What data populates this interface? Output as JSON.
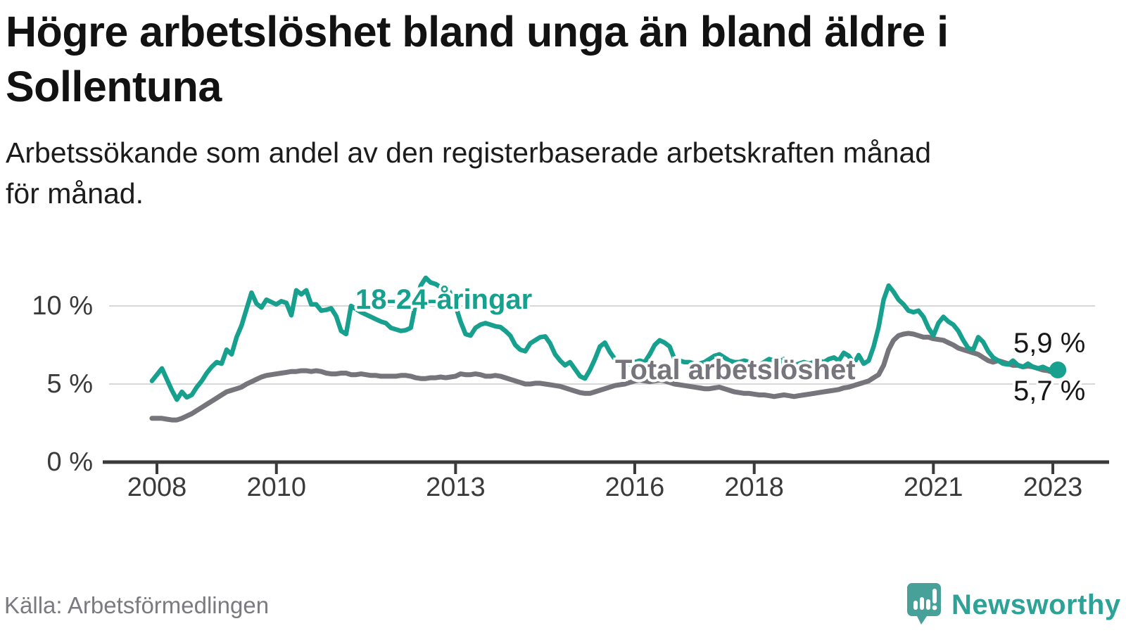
{
  "header": {
    "title": "Högre arbetslöshet bland unga än bland äldre i Sollentuna",
    "title_lines": [
      "Högre arbetslöshet bland unga än bland äldre i",
      "Sollentuna"
    ],
    "subtitle": "Arbetssökande som andel av den registerbaserade arbetskraften månad för månad.",
    "subtitle_lines": [
      "Arbetssökande som andel av den registerbaserade arbetskraften månad",
      "för månad."
    ]
  },
  "chart_data": {
    "type": "line",
    "title": "Högre arbetslöshet bland unga än bland äldre i Sollentuna",
    "unit": "%",
    "frequency": "monthly",
    "x_start": {
      "year": 2007,
      "month": 12
    },
    "x_end": {
      "year": 2023,
      "month": 2
    },
    "xlim": [
      2007.8,
      2023.95
    ],
    "ylim": [
      0,
      12.5
    ],
    "grid": "horizontal",
    "x_ticks": [
      2008,
      2010,
      2013,
      2016,
      2018,
      2021,
      2023
    ],
    "y_ticks": [
      {
        "value": 0,
        "label": "0 %"
      },
      {
        "value": 5,
        "label": "5 %"
      },
      {
        "value": 10,
        "label": "10 %"
      }
    ],
    "colors": {
      "grid": "#d8d8d8",
      "axis": "#3a3a3a",
      "tick_text": "#3a3a3a"
    },
    "series": [
      {
        "name": "18-24-åringar",
        "color": "#17a08e",
        "end_label": "5,9 %",
        "end_value": 5.9,
        "end_dot": true,
        "values": [
          5.2,
          5.6,
          6.0,
          5.3,
          4.6,
          4.0,
          4.5,
          4.15,
          4.3,
          4.8,
          5.2,
          5.7,
          6.1,
          6.4,
          6.3,
          7.2,
          6.9,
          8.0,
          8.75,
          9.8,
          10.85,
          10.15,
          9.9,
          10.4,
          10.25,
          10.1,
          10.3,
          10.2,
          9.4,
          11.0,
          10.75,
          11.0,
          10.1,
          10.1,
          9.7,
          9.75,
          9.85,
          9.35,
          8.4,
          8.2,
          10.0,
          9.8,
          9.6,
          9.45,
          9.3,
          9.15,
          9.0,
          8.9,
          8.6,
          8.5,
          8.4,
          8.45,
          8.6,
          10.2,
          11.3,
          11.8,
          11.5,
          11.4,
          11.2,
          11.3,
          10.8,
          10.0,
          9.0,
          8.2,
          8.1,
          8.6,
          8.8,
          8.9,
          8.8,
          8.7,
          8.65,
          8.4,
          8.1,
          7.5,
          7.2,
          7.1,
          7.6,
          7.8,
          8.0,
          8.05,
          7.6,
          6.9,
          6.5,
          6.2,
          6.4,
          5.95,
          5.5,
          5.35,
          5.9,
          6.6,
          7.4,
          7.65,
          7.05,
          6.6,
          6.4,
          6.3,
          6.3,
          6.4,
          6.5,
          6.4,
          6.9,
          7.5,
          7.8,
          7.65,
          7.4,
          6.6,
          6.5,
          6.4,
          6.4,
          6.3,
          6.3,
          6.4,
          6.6,
          6.8,
          6.9,
          6.7,
          6.5,
          6.4,
          6.4,
          6.5,
          6.4,
          6.3,
          6.2,
          6.4,
          6.6,
          6.5,
          6.4,
          6.6,
          6.4,
          6.2,
          6.3,
          6.4,
          6.3,
          6.4,
          6.5,
          6.4,
          6.6,
          6.7,
          6.5,
          7.0,
          6.8,
          6.3,
          6.85,
          6.3,
          6.5,
          7.4,
          8.65,
          10.4,
          11.3,
          10.9,
          10.4,
          10.1,
          9.7,
          9.6,
          9.7,
          9.3,
          8.6,
          8.1,
          8.9,
          9.3,
          9.0,
          8.8,
          8.4,
          7.8,
          7.3,
          7.2,
          8.0,
          7.7,
          7.1,
          6.7,
          6.5,
          6.3,
          6.25,
          6.5,
          6.2,
          6.1,
          6.3,
          6.1,
          6.0,
          6.1,
          5.95,
          5.85,
          5.9
        ]
      },
      {
        "name": "Total arbetslöshet",
        "color": "#76757b",
        "end_label": "5,7 %",
        "end_value": 5.7,
        "end_dot": false,
        "values": [
          2.8,
          2.8,
          2.8,
          2.75,
          2.7,
          2.7,
          2.8,
          2.95,
          3.1,
          3.3,
          3.5,
          3.7,
          3.9,
          4.1,
          4.3,
          4.5,
          4.6,
          4.7,
          4.8,
          5.0,
          5.15,
          5.3,
          5.45,
          5.55,
          5.6,
          5.65,
          5.7,
          5.75,
          5.8,
          5.8,
          5.85,
          5.85,
          5.8,
          5.85,
          5.8,
          5.7,
          5.65,
          5.65,
          5.7,
          5.7,
          5.6,
          5.6,
          5.65,
          5.6,
          5.55,
          5.55,
          5.5,
          5.5,
          5.5,
          5.5,
          5.55,
          5.55,
          5.5,
          5.4,
          5.35,
          5.35,
          5.4,
          5.4,
          5.45,
          5.4,
          5.45,
          5.5,
          5.65,
          5.6,
          5.6,
          5.65,
          5.6,
          5.5,
          5.5,
          5.55,
          5.5,
          5.4,
          5.3,
          5.2,
          5.1,
          5.0,
          5.0,
          5.05,
          5.05,
          5.0,
          4.95,
          4.9,
          4.85,
          4.75,
          4.65,
          4.55,
          4.45,
          4.4,
          4.4,
          4.5,
          4.6,
          4.7,
          4.8,
          4.9,
          4.95,
          5.0,
          5.1,
          5.2,
          5.25,
          5.2,
          5.15,
          5.2,
          5.25,
          5.2,
          5.1,
          5.0,
          4.95,
          4.9,
          4.85,
          4.8,
          4.75,
          4.7,
          4.7,
          4.75,
          4.8,
          4.7,
          4.6,
          4.5,
          4.45,
          4.4,
          4.4,
          4.35,
          4.3,
          4.3,
          4.25,
          4.2,
          4.25,
          4.3,
          4.25,
          4.2,
          4.25,
          4.3,
          4.35,
          4.4,
          4.45,
          4.5,
          4.55,
          4.6,
          4.65,
          4.75,
          4.8,
          4.9,
          5.0,
          5.1,
          5.2,
          5.4,
          5.6,
          6.2,
          7.2,
          7.8,
          8.1,
          8.2,
          8.25,
          8.2,
          8.1,
          8.0,
          8.0,
          7.9,
          7.85,
          7.8,
          7.65,
          7.5,
          7.3,
          7.2,
          7.1,
          7.0,
          6.9,
          6.7,
          6.5,
          6.4,
          6.5,
          6.4,
          6.3,
          6.2,
          6.2,
          6.1,
          6.15,
          6.1,
          6.0,
          5.9,
          5.85,
          5.75,
          5.7
        ]
      }
    ]
  },
  "footer": {
    "source": "Källa: Arbetsförmedlingen",
    "brand": "Newsworthy",
    "brand_color": "#2ea296",
    "brand_icon_color": "#47a199"
  }
}
